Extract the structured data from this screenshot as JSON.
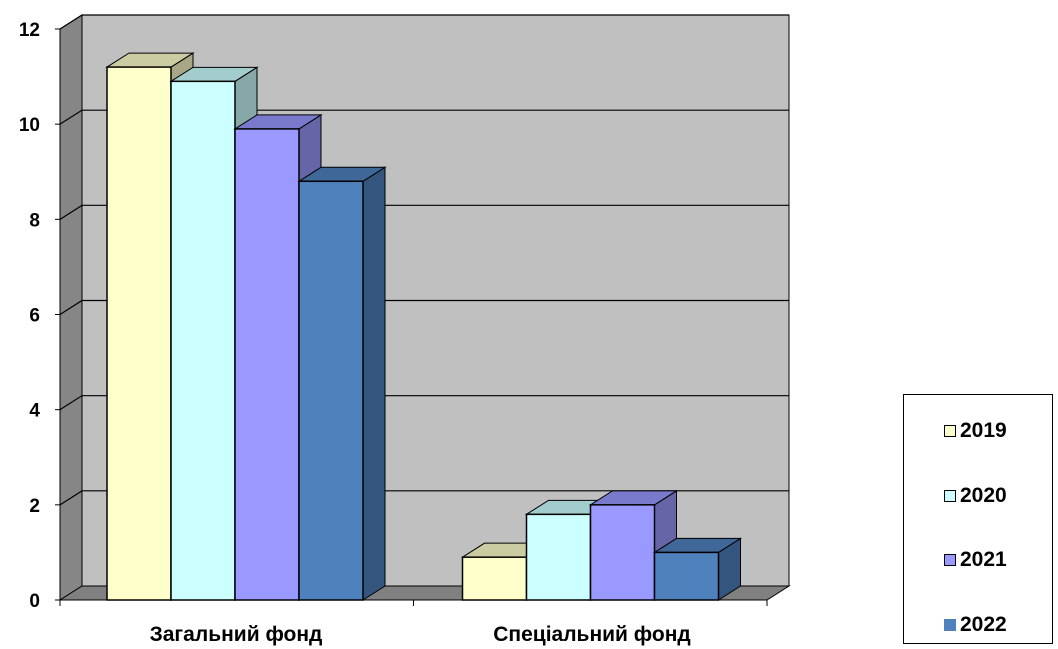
{
  "chart_data": {
    "type": "bar",
    "categories": [
      "Загальний фонд",
      "Спеціальний фонд"
    ],
    "series": [
      {
        "name": "2019",
        "values": [
          11.2,
          0.9
        ],
        "color": "#ffffcc"
      },
      {
        "name": "2020",
        "values": [
          10.9,
          1.8
        ],
        "color": "#ccffff"
      },
      {
        "name": "2021",
        "values": [
          9.9,
          2.0
        ],
        "color": "#9999ff"
      },
      {
        "name": "2022",
        "values": [
          8.8,
          1.0
        ],
        "color": "#4f81bd"
      }
    ],
    "ylim": [
      0,
      12
    ],
    "yticks": [
      "0",
      "2",
      "4",
      "6",
      "8",
      "10",
      "12"
    ],
    "grid": true,
    "legend": "right",
    "style": "3d-clustered",
    "wall_color": "#c0c0c0",
    "floor_color": "#808080"
  }
}
